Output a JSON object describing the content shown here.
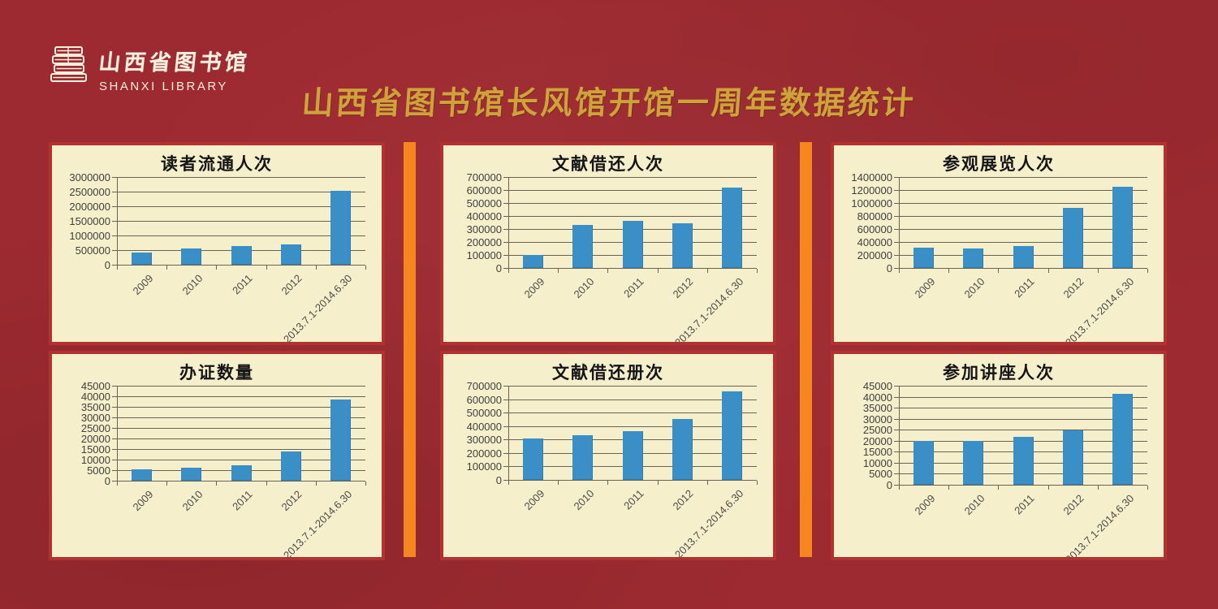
{
  "header": {
    "logo": {
      "icon": "stacked-books-icon",
      "name_zh": "山西省图书馆",
      "name_en": "SHANXI LIBRARY"
    },
    "title": "山西省图书馆长风馆开馆一周年数据统计"
  },
  "colors": {
    "background_maroon": "#9e2a31",
    "panel_background": "#f6efcb",
    "panel_border_red": "#b23230",
    "divider_orange": "#f6871f",
    "bar_blue": "#3a8fc7",
    "title_gold": "#cfa23a",
    "gridline": "#6a6255",
    "axis_text": "#4c4c4c"
  },
  "chart_data": [
    {
      "type": "bar",
      "title": "读者流通人次",
      "categories": [
        "2009",
        "2010",
        "2011",
        "2012",
        "2013.7.1-2014.6.30"
      ],
      "values": [
        420000,
        550000,
        650000,
        700000,
        2530000
      ],
      "xlabel": "",
      "ylabel": "",
      "ylim": [
        0,
        3000000
      ],
      "ystep": 500000,
      "grid": true,
      "legend_position": "none"
    },
    {
      "type": "bar",
      "title": "文献借还人次",
      "categories": [
        "2009",
        "2010",
        "2011",
        "2012",
        "2013.7.1-2014.6.30"
      ],
      "values": [
        100000,
        330000,
        360000,
        345000,
        620000
      ],
      "xlabel": "",
      "ylabel": "",
      "ylim": [
        0,
        700000
      ],
      "ystep": 100000,
      "grid": true,
      "legend_position": "none"
    },
    {
      "type": "bar",
      "title": "参观展览人次",
      "categories": [
        "2009",
        "2010",
        "2011",
        "2012",
        "2013.7.1-2014.6.30"
      ],
      "values": [
        310000,
        295000,
        340000,
        920000,
        1250000
      ],
      "xlabel": "",
      "ylabel": "",
      "ylim": [
        0,
        1400000
      ],
      "ystep": 200000,
      "grid": true,
      "legend_position": "none"
    },
    {
      "type": "bar",
      "title": "办证数量",
      "categories": [
        "2009",
        "2010",
        "2011",
        "2012",
        "2013.7.1-2014.6.30"
      ],
      "values": [
        5500,
        6300,
        7400,
        13800,
        38300
      ],
      "xlabel": "",
      "ylabel": "",
      "ylim": [
        0,
        45000
      ],
      "ystep": 5000,
      "grid": true,
      "legend_position": "none"
    },
    {
      "type": "bar",
      "title": "文献借还册次",
      "categories": [
        "2009",
        "2010",
        "2011",
        "2012",
        "2013.7.1-2014.6.30"
      ],
      "values": [
        310000,
        330000,
        360000,
        450000,
        660000
      ],
      "xlabel": "",
      "ylabel": "",
      "ylim": [
        0,
        700000
      ],
      "ystep": 100000,
      "grid": true,
      "legend_position": "none"
    },
    {
      "type": "bar",
      "title": "参加讲座人次",
      "categories": [
        "2009",
        "2010",
        "2011",
        "2012",
        "2013.7.1-2014.6.30"
      ],
      "values": [
        20000,
        20000,
        21800,
        24800,
        41300
      ],
      "xlabel": "",
      "ylabel": "",
      "ylim": [
        0,
        45000
      ],
      "ystep": 5000,
      "grid": true,
      "legend_position": "none"
    }
  ]
}
